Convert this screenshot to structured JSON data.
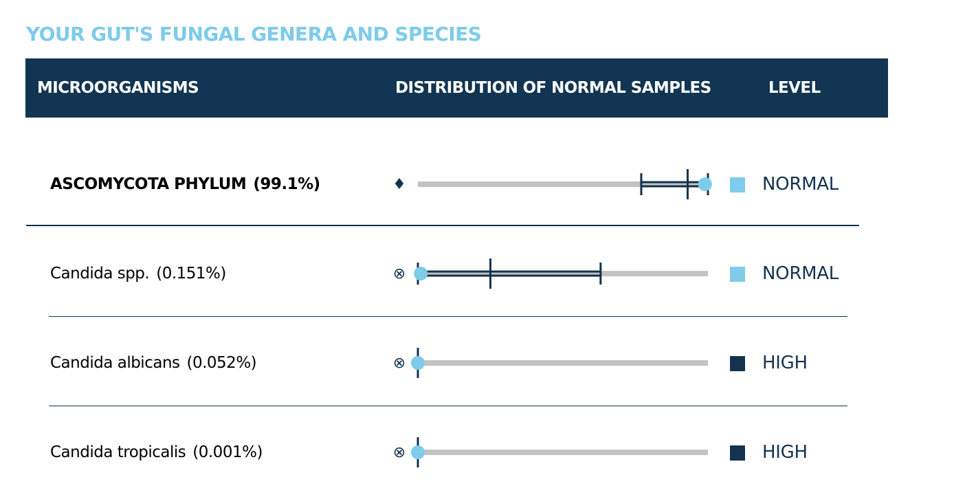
{
  "title": "YOUR GUT'S FUNGAL GENERA AND SPECIES",
  "colors": {
    "title": "#7ecbea",
    "header_bg": "#113552",
    "dark": "#13334f",
    "light": "#7ecbea",
    "track": "#c3c3c3"
  },
  "table": {
    "headers": {
      "microorganisms": "MICROORGANISMS",
      "distribution": "DISTRIBUTION OF NORMAL SAMPLES",
      "level": "LEVEL"
    },
    "rows": [
      {
        "name": "ASCOMYCOTA PHYLUM",
        "percent": "(99.1%)",
        "bold": true,
        "marker": "♦",
        "marker_icon": "diamond-icon",
        "range": {
          "low": 0.77,
          "median": 0.93,
          "high": 1.0,
          "value": 0.99
        },
        "level": "NORMAL",
        "level_color": "#7ecbea"
      },
      {
        "name": "Candida spp.",
        "percent": "(0.151%)",
        "bold": false,
        "marker": "⊗",
        "marker_icon": "circled-x-icon",
        "range": {
          "low": 0.0,
          "median": 0.25,
          "high": 0.63,
          "value": 0.01
        },
        "level": "NORMAL",
        "level_color": "#7ecbea"
      },
      {
        "name": "Candida albicans",
        "percent": "(0.052%)",
        "bold": false,
        "marker": "⊗",
        "marker_icon": "circled-x-icon",
        "range": {
          "low": 0.0,
          "median": 0.0,
          "high": 0.0,
          "value": 0.0
        },
        "level": "HIGH",
        "level_color": "#13334f"
      },
      {
        "name": "Candida tropicalis",
        "percent": "(0.001%)",
        "bold": false,
        "marker": "⊗",
        "marker_icon": "circled-x-icon",
        "range": {
          "low": 0.0,
          "median": 0.0,
          "high": 0.0,
          "value": 0.0
        },
        "level": "HIGH",
        "level_color": "#13334f"
      }
    ]
  }
}
